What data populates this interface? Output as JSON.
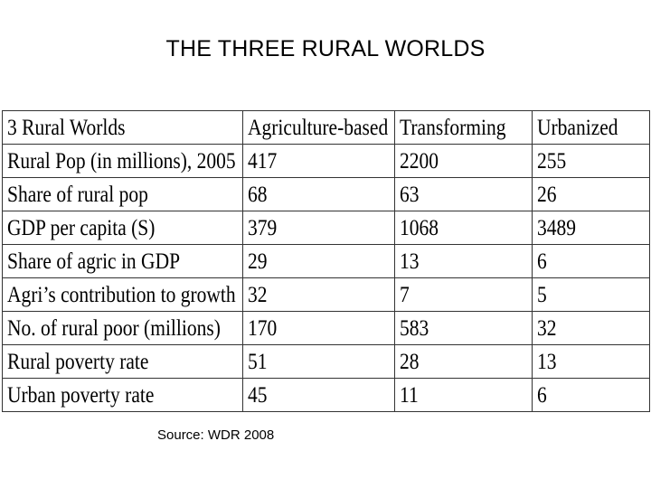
{
  "slide": {
    "title": "THE THREE RURAL WORLDS",
    "source": "Source: WDR 2008"
  },
  "table": {
    "header": [
      "3 Rural Worlds",
      "Agriculture-based",
      "Transforming",
      "Urbanized"
    ],
    "rows": [
      [
        "Rural Pop (in millions), 2005",
        "417",
        "2200",
        "255"
      ],
      [
        "Share of rural pop",
        "68",
        "63",
        "26"
      ],
      [
        "GDP per capita (S)",
        "379",
        "1068",
        "3489"
      ],
      [
        "Share of agric in GDP",
        "29",
        "13",
        "6"
      ],
      [
        "Agri’s contribution to growth",
        "32",
        "7",
        "5"
      ],
      [
        "No. of rural poor (millions)",
        "170",
        "583",
        "32"
      ],
      [
        "Rural poverty rate",
        "51",
        "28",
        "13"
      ],
      [
        "Urban poverty rate",
        "45",
        "11",
        "6"
      ]
    ]
  }
}
